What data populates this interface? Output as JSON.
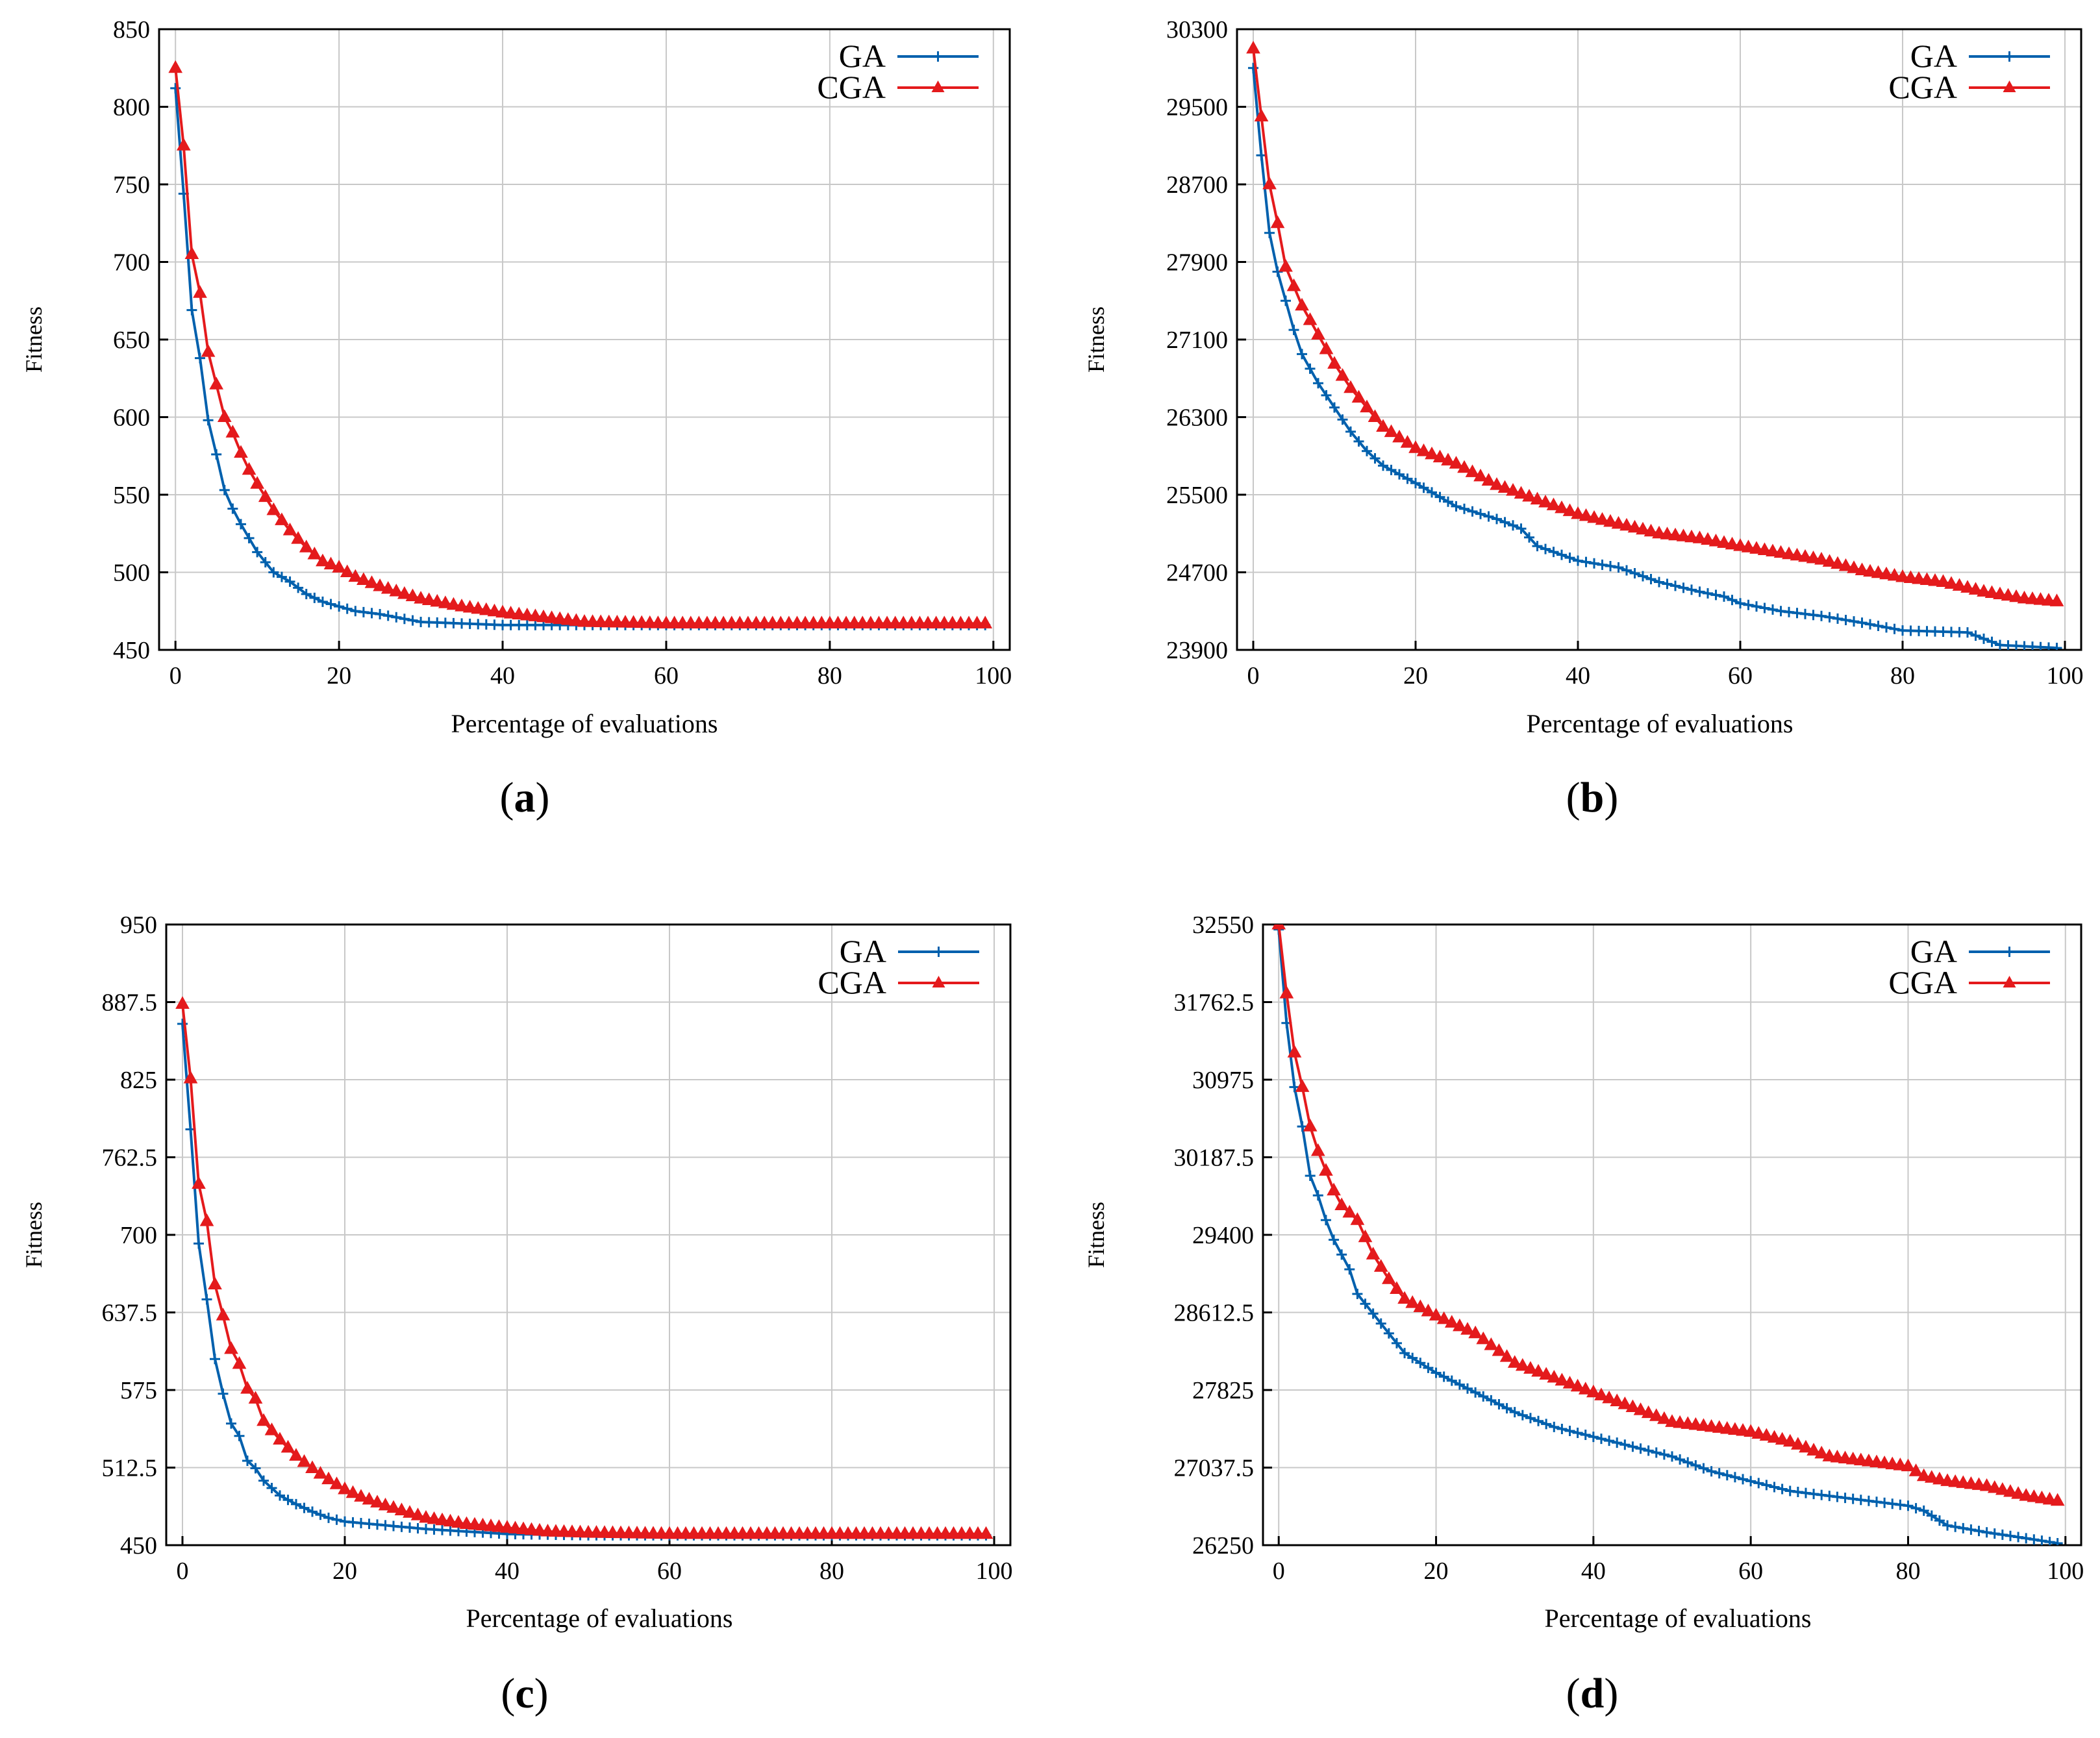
{
  "chart_data": [
    {
      "type": "line",
      "panel_label": "a",
      "xlabel": "Percentage of evaluations",
      "ylabel": "Fitness",
      "xlim": [
        -2,
        102
      ],
      "ylim": [
        450,
        850
      ],
      "xticks": [
        "0",
        "20",
        "40",
        "60",
        "80",
        "100"
      ],
      "yticks": [
        "450",
        "500",
        "550",
        "600",
        "650",
        "700",
        "750",
        "800",
        "850"
      ],
      "grid": true,
      "legend": "top-right",
      "x_step": 1,
      "series": [
        {
          "name": "GA",
          "color": "#0060ad",
          "marker": "plus",
          "anchors": [
            [
              0,
              812
            ],
            [
              1,
              744
            ],
            [
              2,
              669
            ],
            [
              3,
              638
            ],
            [
              4,
              598
            ],
            [
              5,
              576
            ],
            [
              6,
              553
            ],
            [
              7,
              541
            ],
            [
              8,
              531
            ],
            [
              9,
              522
            ],
            [
              10,
              513
            ],
            [
              12,
              500
            ],
            [
              14,
              494
            ],
            [
              16,
              486
            ],
            [
              18,
              481
            ],
            [
              20,
              478
            ],
            [
              22,
              475
            ],
            [
              25,
              473
            ],
            [
              28,
              470
            ],
            [
              30,
              468
            ],
            [
              35,
              467
            ],
            [
              40,
              466
            ],
            [
              50,
              466
            ],
            [
              99,
              466
            ]
          ]
        },
        {
          "name": "CGA",
          "color": "#e41a1c",
          "marker": "triangle",
          "anchors": [
            [
              0,
              825
            ],
            [
              1,
              775
            ],
            [
              2,
              705
            ],
            [
              3,
              680
            ],
            [
              4,
              642
            ],
            [
              5,
              621
            ],
            [
              6,
              600
            ],
            [
              7,
              590
            ],
            [
              8,
              577
            ],
            [
              9,
              566
            ],
            [
              10,
              557
            ],
            [
              12,
              540
            ],
            [
              14,
              527
            ],
            [
              16,
              516
            ],
            [
              18,
              507
            ],
            [
              20,
              503
            ],
            [
              22,
              497
            ],
            [
              25,
              491
            ],
            [
              28,
              486
            ],
            [
              30,
              483
            ],
            [
              35,
              478
            ],
            [
              40,
              474
            ],
            [
              45,
              471
            ],
            [
              50,
              468
            ],
            [
              60,
              467
            ],
            [
              99,
              467
            ]
          ]
        }
      ]
    },
    {
      "type": "line",
      "panel_label": "b",
      "xlabel": "Percentage of evaluations",
      "ylabel": "Fitness",
      "xlim": [
        -2,
        102
      ],
      "ylim": [
        23900,
        30300
      ],
      "xticks": [
        "0",
        "20",
        "40",
        "60",
        "80",
        "100"
      ],
      "yticks": [
        "23900",
        "24700",
        "25500",
        "26300",
        "27100",
        "27900",
        "28700",
        "29500",
        "30300"
      ],
      "grid": true,
      "legend": "top-right",
      "x_step": 1,
      "series": [
        {
          "name": "GA",
          "color": "#0060ad",
          "marker": "plus",
          "anchors": [
            [
              0,
              29900
            ],
            [
              1,
              29000
            ],
            [
              2,
              28200
            ],
            [
              3,
              27800
            ],
            [
              4,
              27500
            ],
            [
              5,
              27200
            ],
            [
              6,
              26950
            ],
            [
              7,
              26800
            ],
            [
              8,
              26650
            ],
            [
              10,
              26400
            ],
            [
              12,
              26150
            ],
            [
              14,
              25950
            ],
            [
              16,
              25800
            ],
            [
              20,
              25620
            ],
            [
              25,
              25380
            ],
            [
              30,
              25250
            ],
            [
              33,
              25150
            ],
            [
              35,
              24970
            ],
            [
              40,
              24820
            ],
            [
              45,
              24750
            ],
            [
              50,
              24600
            ],
            [
              55,
              24500
            ],
            [
              58,
              24450
            ],
            [
              60,
              24380
            ],
            [
              65,
              24300
            ],
            [
              70,
              24250
            ],
            [
              75,
              24180
            ],
            [
              80,
              24100
            ],
            [
              88,
              24080
            ],
            [
              92,
              23950
            ],
            [
              99,
              23920
            ]
          ]
        },
        {
          "name": "CGA",
          "color": "#e41a1c",
          "marker": "triangle",
          "anchors": [
            [
              0,
              30100
            ],
            [
              1,
              29400
            ],
            [
              2,
              28700
            ],
            [
              3,
              28300
            ],
            [
              4,
              27850
            ],
            [
              5,
              27650
            ],
            [
              6,
              27450
            ],
            [
              7,
              27300
            ],
            [
              8,
              27150
            ],
            [
              10,
              26850
            ],
            [
              12,
              26600
            ],
            [
              14,
              26400
            ],
            [
              16,
              26200
            ],
            [
              20,
              25980
            ],
            [
              25,
              25820
            ],
            [
              30,
              25600
            ],
            [
              35,
              25450
            ],
            [
              40,
              25300
            ],
            [
              45,
              25200
            ],
            [
              50,
              25100
            ],
            [
              55,
              25050
            ],
            [
              60,
              24970
            ],
            [
              65,
              24900
            ],
            [
              70,
              24830
            ],
            [
              75,
              24720
            ],
            [
              80,
              24650
            ],
            [
              85,
              24600
            ],
            [
              90,
              24500
            ],
            [
              95,
              24430
            ],
            [
              99,
              24400
            ]
          ]
        }
      ]
    },
    {
      "type": "line",
      "panel_label": "c",
      "xlabel": "Percentage of evaluations",
      "ylabel": "Fitness",
      "xlim": [
        -2,
        102
      ],
      "ylim": [
        450,
        950
      ],
      "xticks": [
        "0",
        "20",
        "40",
        "60",
        "80",
        "100"
      ],
      "yticks": [
        "450",
        "512.5",
        "575",
        "637.5",
        "700",
        "762.5",
        "825",
        "887.5",
        "950"
      ],
      "grid": true,
      "legend": "top-right",
      "x_step": 1,
      "series": [
        {
          "name": "GA",
          "color": "#0060ad",
          "marker": "plus",
          "anchors": [
            [
              0,
              870
            ],
            [
              1,
              785
            ],
            [
              2,
              693
            ],
            [
              3,
              648
            ],
            [
              4,
              600
            ],
            [
              5,
              572
            ],
            [
              6,
              548
            ],
            [
              7,
              538
            ],
            [
              8,
              518
            ],
            [
              9,
              512
            ],
            [
              10,
              502
            ],
            [
              12,
              490
            ],
            [
              14,
              483
            ],
            [
              16,
              477
            ],
            [
              18,
              472
            ],
            [
              20,
              469
            ],
            [
              25,
              466
            ],
            [
              30,
              463
            ],
            [
              35,
              461
            ],
            [
              40,
              459
            ],
            [
              50,
              458
            ],
            [
              99,
              458
            ]
          ]
        },
        {
          "name": "CGA",
          "color": "#e41a1c",
          "marker": "triangle",
          "anchors": [
            [
              0,
              886
            ],
            [
              1,
              826
            ],
            [
              2,
              741
            ],
            [
              3,
              711
            ],
            [
              4,
              660
            ],
            [
              5,
              635
            ],
            [
              6,
              608
            ],
            [
              7,
              596
            ],
            [
              8,
              576
            ],
            [
              9,
              568
            ],
            [
              10,
              550
            ],
            [
              12,
              535
            ],
            [
              14,
              522
            ],
            [
              16,
              512
            ],
            [
              18,
              503
            ],
            [
              20,
              495
            ],
            [
              22,
              489
            ],
            [
              25,
              482
            ],
            [
              28,
              476
            ],
            [
              30,
              472
            ],
            [
              35,
              467
            ],
            [
              40,
              464
            ],
            [
              45,
              461
            ],
            [
              50,
              460
            ],
            [
              60,
              459
            ],
            [
              99,
              459
            ]
          ]
        }
      ]
    },
    {
      "type": "line",
      "panel_label": "d",
      "xlabel": "Percentage of evaluations",
      "ylabel": "Fitness",
      "xlim": [
        -2,
        102
      ],
      "ylim": [
        26250,
        32550
      ],
      "xticks": [
        "0",
        "20",
        "40",
        "60",
        "80",
        "100"
      ],
      "yticks": [
        "26250",
        "27037.5",
        "27825",
        "28612.5",
        "29400",
        "30187.5",
        "30975",
        "31762.5",
        "32550"
      ],
      "grid": true,
      "legend": "top-right",
      "x_step": 1,
      "series": [
        {
          "name": "GA",
          "color": "#0060ad",
          "marker": "plus",
          "anchors": [
            [
              0,
              32500
            ],
            [
              1,
              31550
            ],
            [
              2,
              30900
            ],
            [
              3,
              30500
            ],
            [
              4,
              30000
            ],
            [
              5,
              29800
            ],
            [
              6,
              29550
            ],
            [
              7,
              29350
            ],
            [
              8,
              29200
            ],
            [
              9,
              29050
            ],
            [
              10,
              28800
            ],
            [
              12,
              28600
            ],
            [
              14,
              28400
            ],
            [
              16,
              28200
            ],
            [
              20,
              28000
            ],
            [
              25,
              27800
            ],
            [
              30,
              27600
            ],
            [
              35,
              27450
            ],
            [
              40,
              27350
            ],
            [
              45,
              27250
            ],
            [
              50,
              27150
            ],
            [
              55,
              27000
            ],
            [
              60,
              26900
            ],
            [
              65,
              26800
            ],
            [
              70,
              26750
            ],
            [
              75,
              26700
            ],
            [
              80,
              26650
            ],
            [
              82,
              26600
            ],
            [
              85,
              26450
            ],
            [
              90,
              26380
            ],
            [
              95,
              26320
            ],
            [
              99,
              26270
            ]
          ]
        },
        {
          "name": "CGA",
          "color": "#e41a1c",
          "marker": "triangle",
          "anchors": [
            [
              0,
              32550
            ],
            [
              1,
              31850
            ],
            [
              2,
              31250
            ],
            [
              3,
              30900
            ],
            [
              4,
              30500
            ],
            [
              5,
              30250
            ],
            [
              6,
              30050
            ],
            [
              7,
              29850
            ],
            [
              8,
              29700
            ],
            [
              10,
              29550
            ],
            [
              12,
              29200
            ],
            [
              14,
              28950
            ],
            [
              16,
              28750
            ],
            [
              20,
              28580
            ],
            [
              25,
              28400
            ],
            [
              30,
              28100
            ],
            [
              35,
              27950
            ],
            [
              40,
              27800
            ],
            [
              45,
              27650
            ],
            [
              50,
              27500
            ],
            [
              55,
              27450
            ],
            [
              60,
              27400
            ],
            [
              65,
              27300
            ],
            [
              70,
              27150
            ],
            [
              75,
              27100
            ],
            [
              80,
              27050
            ],
            [
              82,
              26950
            ],
            [
              85,
              26900
            ],
            [
              90,
              26850
            ],
            [
              95,
              26750
            ],
            [
              99,
              26700
            ]
          ]
        }
      ]
    }
  ]
}
